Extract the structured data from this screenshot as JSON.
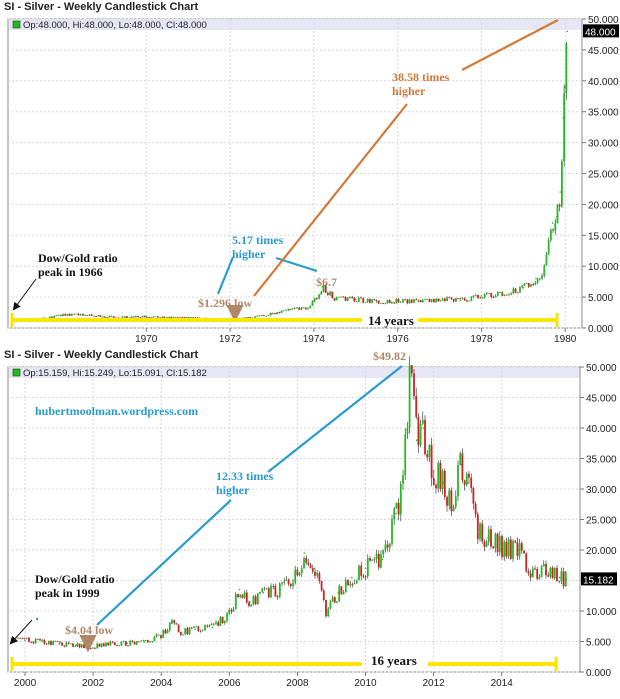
{
  "chart_data": [
    {
      "type": "candlestick",
      "title": "SI - Silver - Weekly Candlestick Chart",
      "ohlc_label": "Op:48.000, Hi:48.000, Lo:48.000, Cl:48.000",
      "last_value_label": "48.000",
      "x_ticks": [
        "1970",
        "1972",
        "1974",
        "1976",
        "1978",
        "1980"
      ],
      "xlim": [
        1966.7,
        1980.4
      ],
      "y_ticks": [
        "0.000",
        "5.000",
        "10.000",
        "15.000",
        "20.000",
        "25.000",
        "30.000",
        "35.000",
        "40.000",
        "45.000",
        "50.000"
      ],
      "ylim": [
        0,
        50
      ],
      "grid": true,
      "colors": {
        "up": "#22bb22",
        "down": "#cc2222",
        "last_box": "#000000",
        "highlight": "#e6e6f5"
      },
      "series": [
        {
          "x": [
            1966.8,
            1967.5,
            1968.0,
            1968.5,
            1969.0,
            1969.5,
            1970.0,
            1970.5,
            1971.0,
            1971.5,
            1971.8,
            1972.2,
            1972.6,
            1973.0,
            1973.4,
            1973.8,
            1974.0,
            1974.2,
            1974.5,
            1975.0,
            1975.5,
            1976.0,
            1976.5,
            1977.0,
            1977.5,
            1978.0,
            1978.5,
            1979.0,
            1979.3,
            1979.5,
            1979.6,
            1979.7,
            1979.8,
            1979.88,
            1979.95,
            1980.0,
            1980.05
          ],
          "values": [
            1.29,
            1.5,
            2.1,
            2.2,
            1.85,
            1.75,
            1.85,
            1.7,
            1.65,
            1.5,
            1.35,
            1.45,
            1.8,
            2.3,
            2.9,
            3.2,
            4.3,
            6.7,
            4.8,
            4.6,
            4.2,
            4.4,
            4.3,
            4.6,
            4.5,
            5.2,
            5.6,
            6.5,
            8.0,
            9.5,
            13.0,
            17.0,
            18.0,
            22.0,
            34.0,
            39.0,
            48.0
          ]
        }
      ],
      "annotations": [
        {
          "text": [
            "Dow/Gold ratio",
            "peak in 1966"
          ],
          "color": "#111111"
        },
        {
          "text": [
            "5.17 times",
            "higher"
          ],
          "color": "#2a9bd0"
        },
        {
          "text": [
            "$6.7"
          ],
          "color": "#b08868"
        },
        {
          "text": [
            "$1.296 low"
          ],
          "color": "#b08868"
        },
        {
          "text": [
            "38.58 times",
            "higher"
          ],
          "color": "#d07a3a"
        },
        {
          "text": [
            "14 years"
          ],
          "color": "#111111"
        }
      ]
    },
    {
      "type": "candlestick",
      "title": "SI - Silver - Weekly Candlestick Chart",
      "ohlc_label": "Op:15.159, Hi:15.249, Lo:15.091, Cl:15.182",
      "last_value_label": "15.182",
      "x_ticks": [
        "2000",
        "2002",
        "2004",
        "2006",
        "2008",
        "2010",
        "2012",
        "2014"
      ],
      "xlim": [
        1999.5,
        2016.3
      ],
      "y_ticks": [
        "0.000",
        "5.000",
        "10.000",
        "15.000",
        "20.000",
        "25.000",
        "30.000",
        "35.000",
        "40.000",
        "45.000",
        "50.000"
      ],
      "ylim": [
        0,
        50
      ],
      "grid": true,
      "colors": {
        "up": "#22bb22",
        "down": "#cc2222",
        "last_box": "#000000",
        "highlight": "#e6e6f5"
      },
      "series": [
        {
          "x": [
            1999.6,
            2000.0,
            2000.5,
            2001.0,
            2001.5,
            2001.9,
            2002.5,
            2003.0,
            2003.5,
            2004.0,
            2004.3,
            2004.6,
            2005.0,
            2005.5,
            2006.0,
            2006.3,
            2006.6,
            2007.0,
            2007.5,
            2008.0,
            2008.2,
            2008.5,
            2008.85,
            2009.2,
            2009.6,
            2010.0,
            2010.5,
            2010.9,
            2011.1,
            2011.32,
            2011.5,
            2011.7,
            2012.0,
            2012.3,
            2012.5,
            2012.8,
            2013.0,
            2013.3,
            2013.6,
            2014.0,
            2014.5,
            2014.9,
            2015.3,
            2015.7,
            2015.9
          ],
          "values": [
            5.4,
            5.2,
            5.0,
            4.6,
            4.4,
            4.1,
            4.6,
            4.7,
            4.9,
            6.0,
            8.0,
            6.5,
            7.0,
            7.3,
            9.5,
            13.5,
            11.5,
            13.0,
            13.5,
            16.5,
            19.5,
            17.0,
            9.5,
            13.0,
            15.5,
            17.0,
            18.5,
            26.0,
            30.0,
            49.82,
            38.0,
            40.0,
            33.0,
            31.0,
            27.0,
            34.0,
            31.0,
            23.0,
            22.0,
            20.5,
            20.0,
            16.0,
            17.0,
            15.5,
            15.18
          ]
        }
      ],
      "annotations": [
        {
          "text": [
            "hubertmoolman.wordpress.com"
          ],
          "color": "#2a9bd0"
        },
        {
          "text": [
            "$49.82"
          ],
          "color": "#b08868"
        },
        {
          "text": [
            "12.33 times",
            "higher"
          ],
          "color": "#2a9bd0"
        },
        {
          "text": [
            "Dow/Gold ratio",
            "peak in 1999"
          ],
          "color": "#111111"
        },
        {
          "text": [
            "$4.04 low"
          ],
          "color": "#b08868"
        },
        {
          "text": [
            "16 years"
          ],
          "color": "#111111"
        }
      ]
    }
  ]
}
